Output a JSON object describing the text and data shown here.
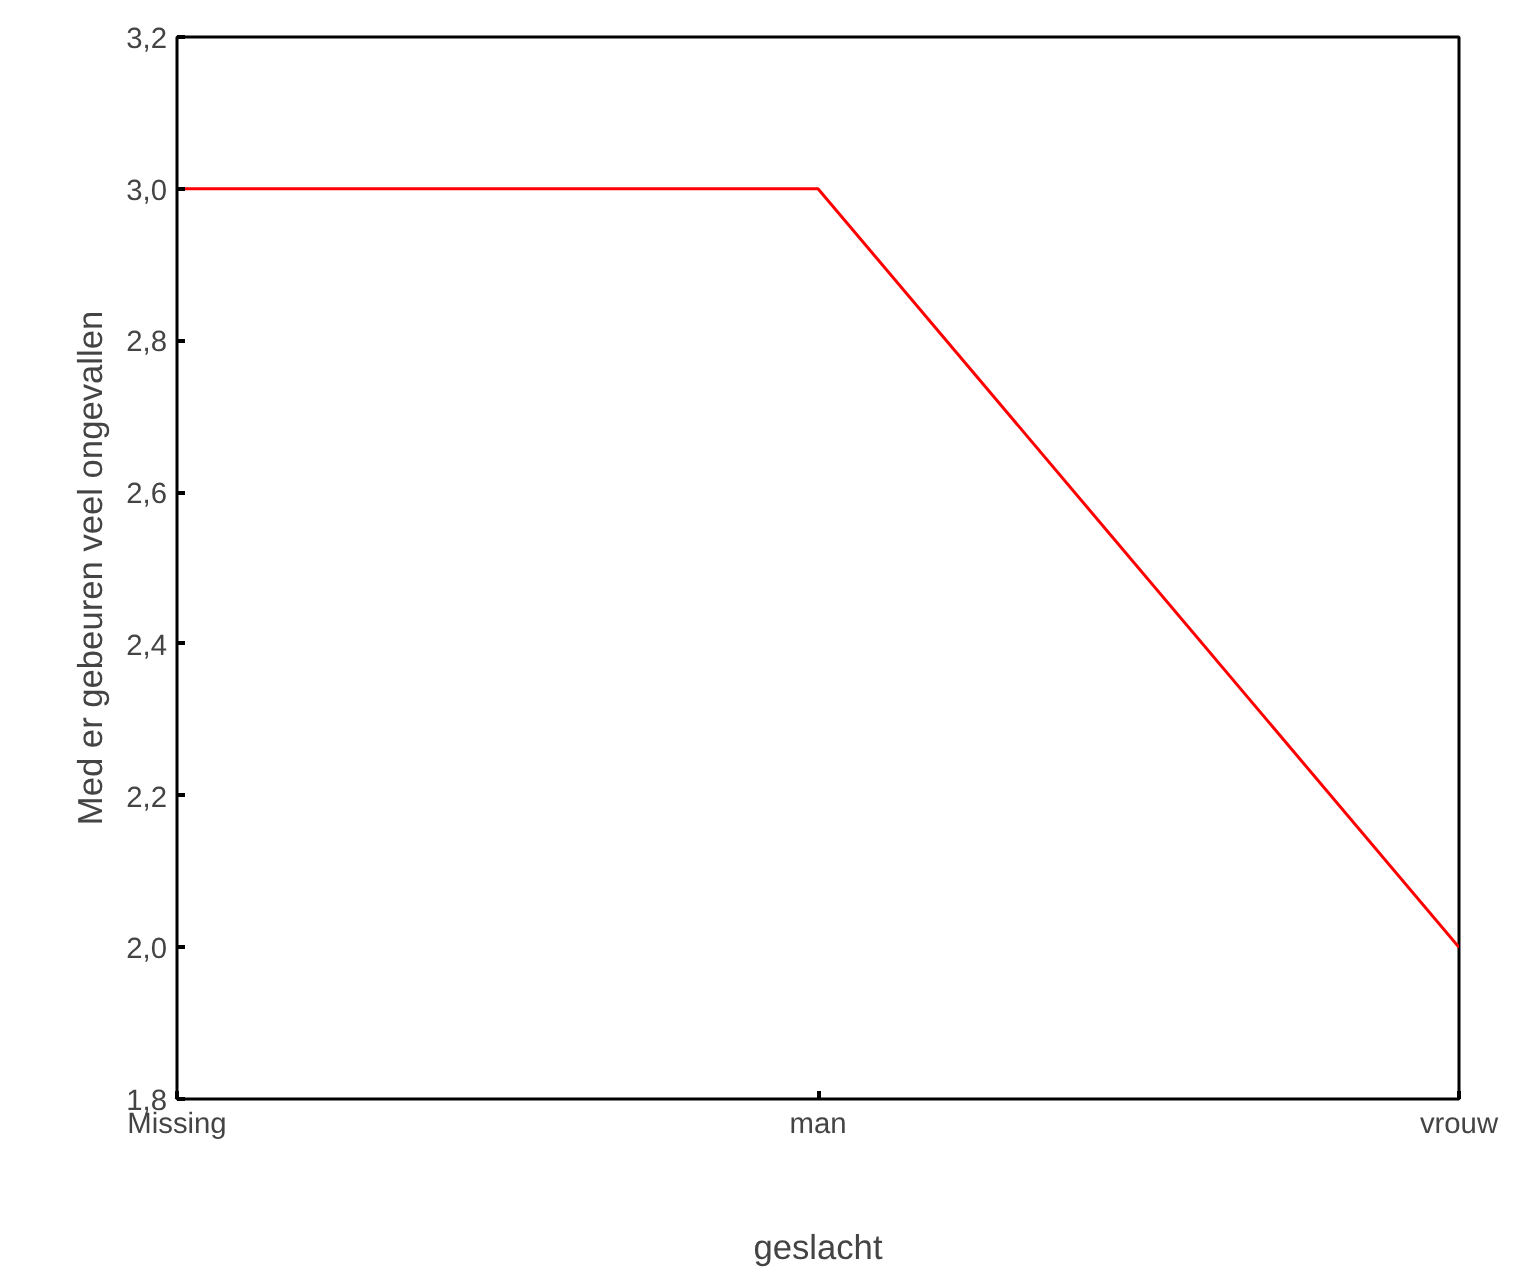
{
  "chart_data": {
    "type": "line",
    "xlabel": "geslacht",
    "ylabel": "Med er gebeuren veel ongevallen",
    "categories": [
      "Missing",
      "man",
      "vrouw"
    ],
    "series": [
      {
        "color": "#ff0000",
        "values": [
          3.0,
          3.0,
          2.0
        ]
      }
    ],
    "ylim": [
      1.8,
      3.2
    ],
    "yticks": [
      {
        "value": 1.8,
        "label": "1,8"
      },
      {
        "value": 2.0,
        "label": "2,0"
      },
      {
        "value": 2.2,
        "label": "2,2"
      },
      {
        "value": 2.4,
        "label": "2,4"
      },
      {
        "value": 2.6,
        "label": "2,6"
      },
      {
        "value": 2.8,
        "label": "2,8"
      },
      {
        "value": 3.0,
        "label": "3,0"
      },
      {
        "value": 3.2,
        "label": "3,2"
      }
    ],
    "grid": false,
    "marker": "none",
    "line_style": "solid"
  }
}
